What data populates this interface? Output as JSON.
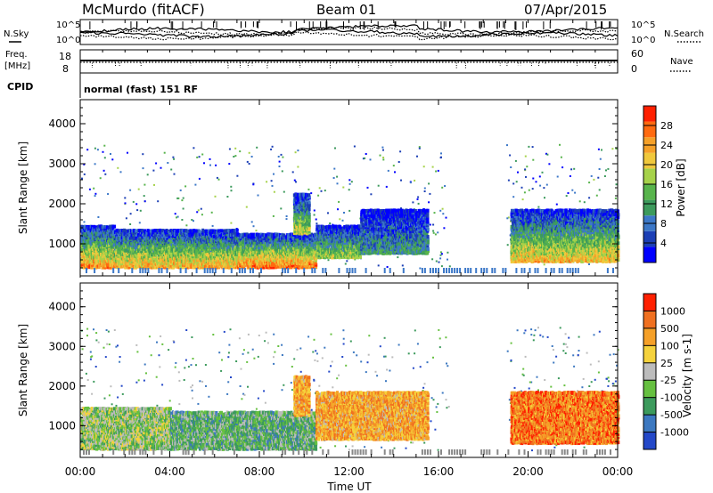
{
  "header": {
    "station": "McMurdo (fitACF)",
    "beam": "Beam 01",
    "date": "07/Apr/2015"
  },
  "status_panel": {
    "left_nsky_label": "N.Sky",
    "right_nsearch_label": "N.Search",
    "noise_ticks": [
      "10^5",
      "10^0"
    ],
    "freq_label_1": "Freq.",
    "freq_label_2": "[MHz]",
    "freq_ticks": [
      "18",
      "8"
    ],
    "nave_label": "Nave",
    "nave_ticks": [
      "60",
      "0"
    ],
    "cpid_label": "CPID",
    "cpid_value": "normal (fast) 151 RF"
  },
  "chart_data": [
    {
      "type": "heatmap",
      "name": "power",
      "ylabel": "Slant Range [km]",
      "xlabel": "",
      "ylim": [
        200,
        4600
      ],
      "yticks": [
        1000,
        2000,
        3000,
        4000
      ],
      "xlim": [
        0,
        24
      ],
      "colorbar": {
        "label": "Power [dB]",
        "ticks": [
          "28",
          "24",
          "20",
          "16",
          "12",
          "8",
          "4"
        ],
        "colors": [
          "#0000ff",
          "#1c3fb5",
          "#3c78c8",
          "#3c9a5c",
          "#58b44c",
          "#a6d24a",
          "#f0c83c",
          "#f5a028",
          "#ff6a10",
          "#ff2000"
        ]
      },
      "echo_bands": [
        {
          "t0": 0,
          "t1": 1.5,
          "r0": 450,
          "r1": 1500,
          "level": 0.8
        },
        {
          "t0": 1.5,
          "t1": 7,
          "r0": 450,
          "r1": 1400,
          "level": 0.75
        },
        {
          "t0": 7,
          "t1": 10.5,
          "r0": 450,
          "r1": 1300,
          "level": 0.85
        },
        {
          "t0": 9.5,
          "t1": 10.2,
          "r0": 1300,
          "r1": 2300,
          "level": 0.6
        },
        {
          "t0": 10.5,
          "t1": 12.5,
          "r0": 700,
          "r1": 1500,
          "level": 0.55
        },
        {
          "t0": 12.5,
          "t1": 15.5,
          "r0": 800,
          "r1": 1900,
          "level": 0.35
        },
        {
          "t0": 19.2,
          "t1": 24,
          "r0": 600,
          "r1": 1900,
          "level": 0.7
        }
      ]
    },
    {
      "type": "heatmap",
      "name": "velocity",
      "ylabel": "Slant Range [km]",
      "xlabel": "Time UT",
      "ylim": [
        200,
        4600
      ],
      "yticks": [
        1000,
        2000,
        3000,
        4000
      ],
      "xlim": [
        0,
        24
      ],
      "xticks": [
        "00:00",
        "04:00",
        "08:00",
        "12:00",
        "16:00",
        "20:00",
        "00:00"
      ],
      "colorbar": {
        "label": "Velocity [m s-1]",
        "ticks": [
          "1000",
          "500",
          "100",
          "25",
          "-25",
          "-100",
          "-500",
          "-1000"
        ],
        "colors": [
          "#2448c8",
          "#3c78c0",
          "#3c9a5c",
          "#66c040",
          "#bcbcbc",
          "#f5d23c",
          "#f5a028",
          "#f07020",
          "#ff2000"
        ]
      },
      "echo_bands": [
        {
          "t0": 0,
          "t1": 4,
          "r0": 450,
          "r1": 1500,
          "level": 0.45
        },
        {
          "t0": 4,
          "t1": 10.5,
          "r0": 450,
          "r1": 1400,
          "level": 0.35
        },
        {
          "t0": 9.5,
          "t1": 10.2,
          "r0": 1300,
          "r1": 2300,
          "level": 0.7
        },
        {
          "t0": 10.5,
          "t1": 15.5,
          "r0": 700,
          "r1": 1900,
          "level": 0.7
        },
        {
          "t0": 19.2,
          "t1": 24,
          "r0": 600,
          "r1": 1900,
          "level": 0.8
        }
      ]
    }
  ]
}
